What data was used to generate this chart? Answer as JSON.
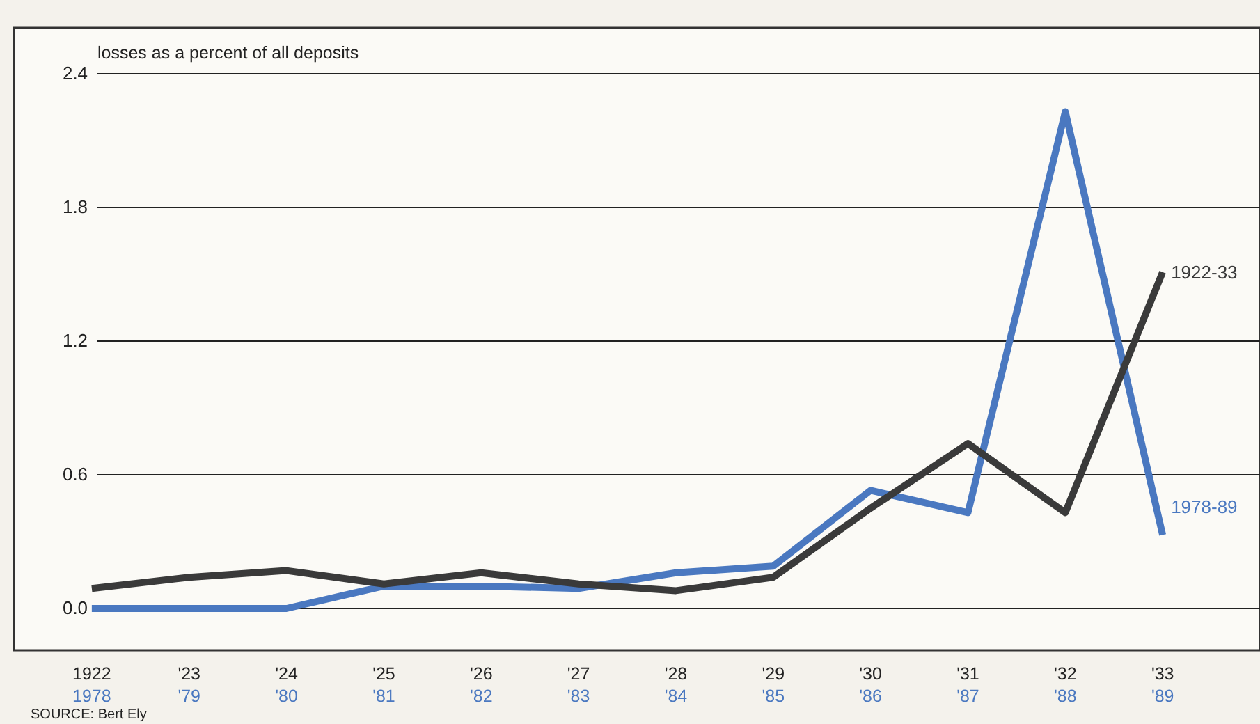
{
  "chart_data": {
    "type": "line",
    "ylabel": "losses as a percent of all deposits",
    "xlim": [
      1921.2,
      1934
    ],
    "xticks": [
      1922,
      {
        "value": 1923,
        "label": "'23"
      },
      {
        "value": 1924,
        "label": "'24"
      },
      {
        "value": 1925,
        "label": "'25"
      },
      {
        "value": 1926,
        "label": "'26"
      },
      {
        "value": 1927,
        "label": "'27"
      },
      {
        "value": 1928,
        "label": "'28"
      },
      {
        "value": 1929,
        "label": "'29"
      },
      {
        "value": 1930,
        "label": "'30"
      },
      {
        "value": 1931,
        "label": "'31"
      },
      {
        "value": 1932,
        "label": "'32"
      },
      {
        "value": 1933,
        "label": "'33"
      }
    ],
    "x2lim": [
      1977.2,
      1990
    ],
    "x2ticks": [
      1978,
      {
        "value": 1979,
        "label": "'79"
      },
      {
        "value": 1980,
        "label": "'80"
      },
      {
        "value": 1981,
        "label": "'81"
      },
      {
        "value": 1982,
        "label": "'82"
      },
      {
        "value": 1983,
        "label": "'83"
      },
      {
        "value": 1984,
        "label": "'84"
      },
      {
        "value": 1985,
        "label": "'85"
      },
      {
        "value": 1986,
        "label": "'86"
      },
      {
        "value": 1987,
        "label": "'87"
      },
      {
        "value": 1988,
        "label": "'88"
      },
      {
        "value": 1989,
        "label": "'89"
      }
    ],
    "ylim": [
      0,
      2.4
    ],
    "yticks": [
      {
        "value": 0,
        "label": "0.0"
      },
      0.6,
      1.2,
      1.8,
      2.4
    ],
    "grid": "y",
    "marker": "none",
    "line_style": "solid",
    "series": [
      {
        "name": "1978-89",
        "color": "#4a78c0",
        "axis": "x2",
        "x": [
          1978,
          1979,
          1980,
          1981,
          1982,
          1983,
          1984,
          1985,
          1986,
          1987,
          1988,
          1989
        ],
        "values": [
          0.0,
          0.0,
          0.0,
          0.1,
          0.1,
          0.09,
          0.16,
          0.19,
          0.53,
          0.43,
          2.23,
          0.33
        ]
      },
      {
        "name": "1922-33",
        "color": "#3a3a3a",
        "x": [
          1922,
          1923,
          1924,
          1925,
          1926,
          1927,
          1928,
          1929,
          1930,
          1931,
          1932,
          1933
        ],
        "values": [
          0.09,
          0.14,
          0.17,
          0.11,
          0.16,
          0.11,
          0.08,
          0.14,
          0.45,
          0.74,
          0.43,
          1.51
        ]
      }
    ],
    "annotations": [
      "SOURCE: Bert Ely"
    ]
  }
}
